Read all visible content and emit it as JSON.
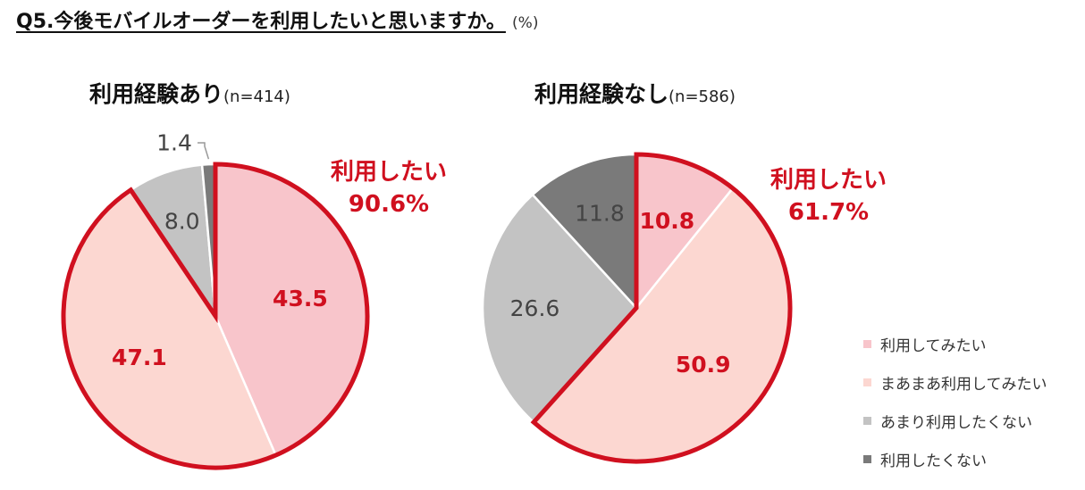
{
  "header": {
    "title": "Q5.今後モバイルオーダーを利用したいと思いますか。",
    "unit": "(%)"
  },
  "legend": [
    {
      "label": "利用してみたい",
      "color": "#F8C5CB"
    },
    {
      "label": "まあまあ利用してみたい",
      "color": "#FCD7D1"
    },
    {
      "label": "あまり利用したくない",
      "color": "#C3C3C3"
    },
    {
      "label": "利用したくない",
      "color": "#7A7A7A"
    }
  ],
  "chart_data": [
    {
      "type": "pie",
      "title": "利用経験あり",
      "n_label": "(n=414)",
      "categories": [
        "利用してみたい",
        "まあまあ利用してみたい",
        "あまり利用したくない",
        "利用したくない"
      ],
      "values": [
        43.5,
        47.1,
        8.0,
        1.4
      ],
      "labels": [
        "43.5",
        "47.1",
        "8.0",
        "1.4"
      ],
      "highlight": {
        "label": "利用したい",
        "value": "90.6%"
      }
    },
    {
      "type": "pie",
      "title": "利用経験なし",
      "n_label": "(n=586)",
      "categories": [
        "利用してみたい",
        "まあまあ利用してみたい",
        "あまり利用したくない",
        "利用したくない"
      ],
      "values": [
        10.8,
        50.9,
        26.6,
        11.8
      ],
      "labels": [
        "10.8",
        "50.9",
        "26.6",
        "11.8"
      ],
      "highlight": {
        "label": "利用したい",
        "value": "61.7%"
      }
    }
  ]
}
